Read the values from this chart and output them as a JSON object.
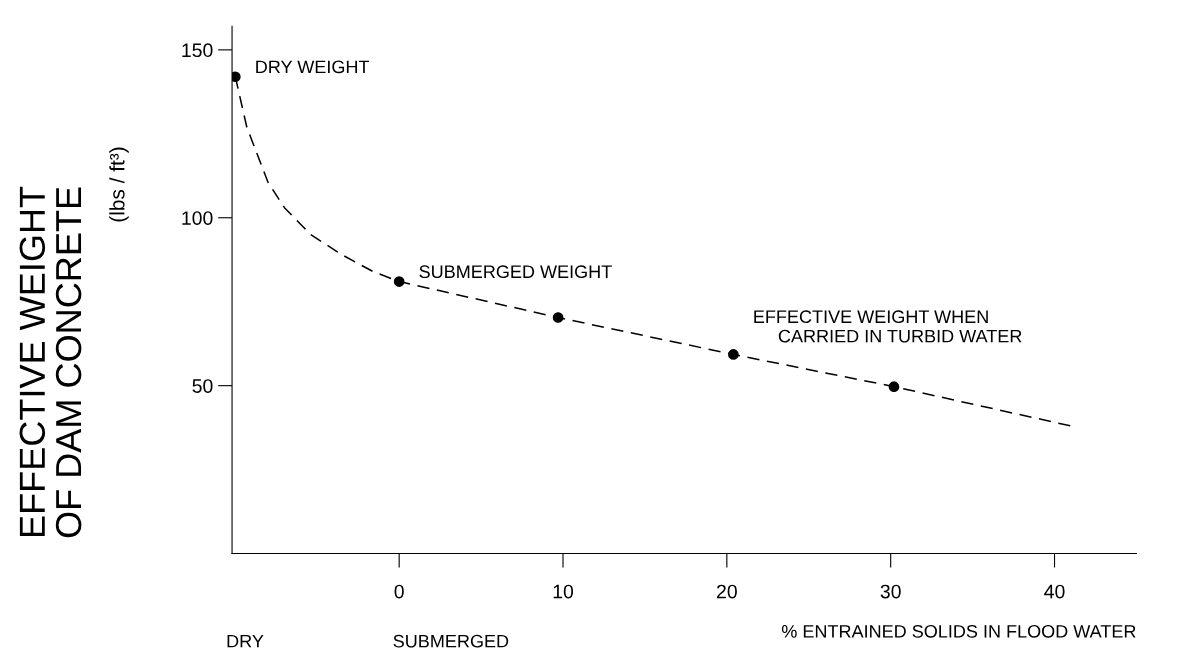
{
  "chart_data": {
    "type": "scatter",
    "xlabel": "% ENTRAINED SOLIDS IN FLOOD WATER",
    "ylabel": "EFFECTIVE WEIGHT\nOF DAM CONCRETE\n(lbs / ft³)",
    "xlim": [
      -10.2,
      45
    ],
    "ylim": [
      0,
      157
    ],
    "xticks": [
      0,
      10,
      20,
      30,
      40
    ],
    "yticks": [
      50,
      100,
      150
    ],
    "grid": false,
    "marker": "circle",
    "series": [
      {
        "type": "line",
        "color": "#000000",
        "line_style": "dashed",
        "marker": "none",
        "x": [
          -10,
          -9.3,
          -8,
          -7,
          -5.4,
          -3.5,
          -1.6,
          0,
          9.7,
          20.4,
          30.2,
          41
        ],
        "values": [
          142,
          127,
          110.5,
          103,
          95,
          89,
          84,
          81,
          70.3,
          59.3,
          49.7,
          38
        ]
      },
      {
        "color": "#000000",
        "x": [
          -10,
          0,
          9.7,
          20.4,
          30.2
        ],
        "values": [
          142,
          81,
          70.3,
          59.3,
          49.7
        ]
      }
    ],
    "annotations": [
      {
        "text": "DRY WEIGHT",
        "x": -10,
        "y": 142
      },
      {
        "text": "SUBMERGED WEIGHT",
        "x": 0,
        "y": 81
      },
      {
        "text": "EFFECTIVE WEIGHT WHEN\n     CARRIED IN TURBID WATER",
        "x": 20.4,
        "y": 59.3
      },
      "DRY",
      "SUBMERGED"
    ]
  }
}
